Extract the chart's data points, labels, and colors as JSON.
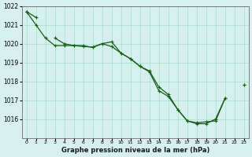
{
  "title": "Graphe pression niveau de la mer (hPa)",
  "background_color": "#d6f0f0",
  "grid_color": "#aaddcc",
  "line_color": "#1a5c1a",
  "marker_color": "#1a5c1a",
  "x_values": [
    0,
    1,
    2,
    3,
    4,
    5,
    6,
    7,
    8,
    9,
    10,
    11,
    12,
    13,
    14,
    15,
    16,
    17,
    18,
    19,
    20,
    21,
    22,
    23
  ],
  "series1": [
    1021.7,
    1021.4,
    null,
    1020.3,
    1020.0,
    1019.9,
    1019.9,
    1019.8,
    1020.0,
    1020.1,
    1019.5,
    1019.2,
    1018.8,
    1018.5,
    1017.5,
    1017.2,
    1016.5,
    1015.9,
    1015.8,
    1015.85,
    1015.9,
    1017.1,
    null,
    1017.8
  ],
  "series2": [
    1021.7,
    1021.0,
    1020.3,
    1019.9,
    1019.9,
    1019.9,
    1019.85,
    1019.82,
    1020.0,
    1019.85,
    1019.5,
    1019.2,
    1018.8,
    1018.55,
    1017.7,
    1017.3,
    1016.5,
    1015.9,
    1015.75,
    1015.75,
    1016.0,
    1017.1,
    null,
    1017.8
  ],
  "series3": [
    1021.7,
    null,
    null,
    null,
    null,
    null,
    null,
    null,
    null,
    null,
    null,
    null,
    null,
    null,
    null,
    null,
    null,
    null,
    null,
    null,
    null,
    null,
    null,
    1017.8
  ],
  "ylim_min": 1015.0,
  "ylim_max": 1022.0,
  "yticks": [
    1016,
    1017,
    1018,
    1019,
    1020,
    1021,
    1022
  ],
  "xlim_min": -0.5,
  "xlim_max": 23.5
}
